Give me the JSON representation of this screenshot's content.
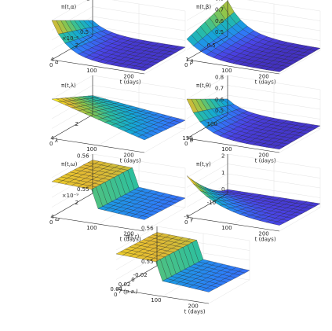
{
  "colors": {
    "colormap": [
      "#3e26a8",
      "#4a43e6",
      "#2d7ff9",
      "#14a7d6",
      "#2bbfa0",
      "#8dc64b",
      "#e3b934",
      "#f9fb15"
    ],
    "mesh_edge": "#1a1a1a",
    "axis": "#262626",
    "grid": "#dcdcdc"
  },
  "chart_data": [
    {
      "type": "surface",
      "zlabel": "π(t,α)",
      "xlabel": "t (days)",
      "ylabel": "α",
      "y_exponent": "×10⁻⁶",
      "z_ticks": [
        "0.5",
        "1"
      ],
      "x_ticks": [
        "0",
        "100",
        "200"
      ],
      "y_ticks": [
        "2",
        "4"
      ],
      "xlim": [
        0,
        250
      ],
      "ylim": [
        0,
        5e-06
      ],
      "zlim": [
        0.4,
        1.05
      ],
      "shape": "decay",
      "z_range": [
        0.45,
        0.95
      ]
    },
    {
      "type": "surface",
      "zlabel": "π(t,β)",
      "xlabel": "t (days)",
      "ylabel": "β",
      "z_ticks": [
        "0.5",
        "0.6",
        "0.7",
        "0.8"
      ],
      "x_ticks": [
        "0",
        "100",
        "200"
      ],
      "y_ticks": [
        "0.5",
        "1"
      ],
      "xlim": [
        0,
        250
      ],
      "ylim": [
        0,
        1
      ],
      "zlim": [
        0.45,
        0.82
      ],
      "shape": "beta",
      "z_range": [
        0.47,
        0.8
      ]
    },
    {
      "type": "surface",
      "zlabel": "π(t,λ)",
      "xlabel": "t (days)",
      "ylabel": "λ",
      "z_ticks": [],
      "x_ticks": [
        "0",
        "100",
        "200"
      ],
      "y_ticks": [
        "2",
        "4"
      ],
      "xlim": [
        0,
        250
      ],
      "ylim": [
        0,
        5
      ],
      "zlim": [
        0,
        1
      ],
      "shape": "plane",
      "z_range": [
        0.2,
        1.0
      ]
    },
    {
      "type": "surface",
      "zlabel": "π(t,θ)",
      "xlabel": "t (days)",
      "ylabel": "θ",
      "z_ticks": [
        "0.5",
        "0.6",
        "0.7",
        "0.8"
      ],
      "x_ticks": [
        "0",
        "100",
        "200"
      ],
      "y_ticks": [
        "100",
        "150"
      ],
      "xlim": [
        0,
        250
      ],
      "ylim": [
        50,
        160
      ],
      "zlim": [
        0.45,
        0.82
      ],
      "shape": "decay",
      "z_range": [
        0.47,
        0.78
      ]
    },
    {
      "type": "surface",
      "zlabel": "π(t,ω)",
      "xlabel": "t (days)",
      "ylabel": "ω",
      "y_exponent": "×10⁻⁹",
      "z_ticks": [
        "0.55",
        "0.56"
      ],
      "x_ticks": [
        "0",
        "100",
        "200"
      ],
      "y_ticks": [
        "2",
        "4"
      ],
      "xlim": [
        0,
        250
      ],
      "ylim": [
        0,
        5e-09
      ],
      "zlim": [
        0.545,
        0.565
      ],
      "shape": "step",
      "z_range": [
        0.553,
        0.563
      ]
    },
    {
      "type": "surface",
      "zlabel": "π(t,γ)",
      "xlabel": "t (days)",
      "ylabel": "γ",
      "z_ticks": [
        "0",
        "1",
        "2"
      ],
      "x_ticks": [
        "0",
        "100",
        "200"
      ],
      "y_ticks": [
        "-10",
        "-5"
      ],
      "xlim": [
        0,
        250
      ],
      "ylim": [
        -12,
        0
      ],
      "zlim": [
        0,
        2.2
      ],
      "shape": "gamma",
      "z_range": [
        0.2,
        2.0
      ]
    },
    {
      "type": "surface",
      "zlabel": "π(t,r)",
      "xlabel": "t (days)",
      "ylabel": "r (p.a.)",
      "z_ticks": [
        "0.55",
        "0.56"
      ],
      "x_ticks": [
        "0",
        "100",
        "200"
      ],
      "y_ticks": [
        "-0.02",
        "0",
        "0.02",
        "0.04"
      ],
      "xlim": [
        0,
        250
      ],
      "ylim": [
        -0.03,
        0.05
      ],
      "zlim": [
        0.545,
        0.565
      ],
      "shape": "step",
      "z_range": [
        0.553,
        0.563
      ]
    }
  ]
}
